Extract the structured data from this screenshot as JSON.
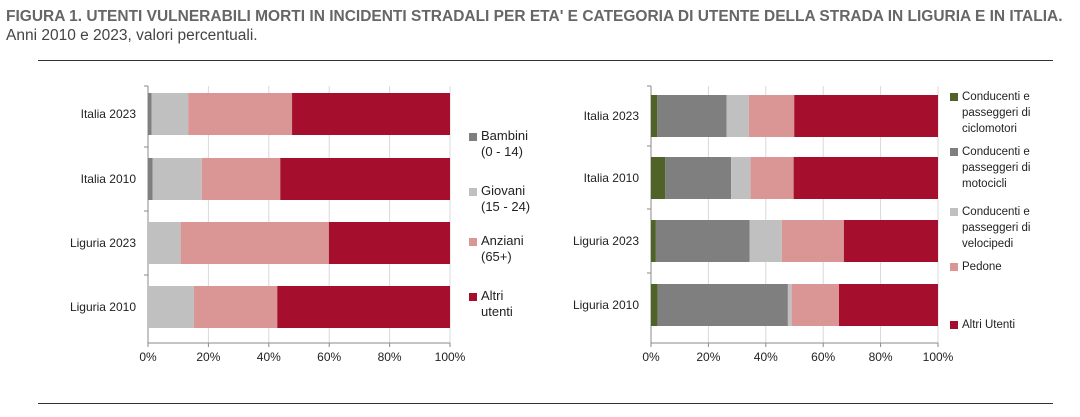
{
  "title": {
    "bold": "FIGURA 1. UTENTI VULNERABILI MORTI IN INCIDENTI STRADALI PER ETA' E CATEGORIA DI UTENTE DELLA STRADA IN LIGURIA E IN ITALIA.",
    "normal": " Anni 2010 e 2023, valori percentuali."
  },
  "chart_data": [
    {
      "type": "bar",
      "stacked": true,
      "orientation": "horizontal",
      "categories": [
        "Italia 2023",
        "Italia 2010",
        "Liguria 2023",
        "Liguria 2010"
      ],
      "series": [
        {
          "name": "Bambini (0 - 14)",
          "legend_lines": [
            "Bambini",
            "(0 - 14)"
          ],
          "color": "#7f7f7f",
          "values": [
            1.2,
            1.5,
            0,
            0
          ]
        },
        {
          "name": "Giovani (15 - 24)",
          "legend_lines": [
            "Giovani",
            "(15 - 24)"
          ],
          "color": "#c0c0c0",
          "values": [
            12.1,
            16.3,
            10.8,
            15.2
          ]
        },
        {
          "name": "Anziani (65+)",
          "legend_lines": [
            "Anziani",
            "(65+)"
          ],
          "color": "#da9694",
          "values": [
            34.4,
            26.0,
            49.1,
            27.6
          ]
        },
        {
          "name": "Altri utenti",
          "legend_lines": [
            "Altri",
            "utenti"
          ],
          "color": "#a50f2d",
          "values": [
            52.3,
            56.2,
            40.1,
            57.2
          ]
        }
      ],
      "xticks": [
        "0%",
        "20%",
        "40%",
        "60%",
        "80%",
        "100%"
      ],
      "xlim": [
        0,
        100
      ],
      "legend": "right"
    },
    {
      "type": "bar",
      "stacked": true,
      "orientation": "horizontal",
      "categories": [
        "Italia 2023",
        "Italia 2010",
        "Liguria 2023",
        "Liguria 2010"
      ],
      "series": [
        {
          "name": "Conducenti e passeggeri di ciclomotori",
          "legend_lines": [
            "Conducenti e",
            "passeggeri di",
            "ciclomotori"
          ],
          "color": "#4f6228",
          "values": [
            2.2,
            4.9,
            1.7,
            2.3
          ]
        },
        {
          "name": "Conducenti e passeggeri di motocicli",
          "legend_lines": [
            "Conducenti e",
            "passeggeri di",
            "motocicli"
          ],
          "color": "#7f7f7f",
          "values": [
            24.1,
            23.0,
            32.7,
            45.4
          ]
        },
        {
          "name": "Conducenti e passeggeri di velocipedi",
          "legend_lines": [
            "Conducenti e",
            "passeggeri di",
            "velocipedi"
          ],
          "color": "#c0c0c0",
          "values": [
            7.8,
            6.8,
            11.2,
            1.3
          ]
        },
        {
          "name": "Pedone",
          "legend_lines": [
            "Pedone"
          ],
          "color": "#da9694",
          "values": [
            15.8,
            15.0,
            21.6,
            16.5
          ]
        },
        {
          "name": "Altri Utenti",
          "legend_lines": [
            "Altri Utenti"
          ],
          "color": "#a50f2d",
          "values": [
            50.1,
            50.3,
            32.8,
            34.5
          ]
        }
      ],
      "xticks": [
        "0%",
        "20%",
        "40%",
        "60%",
        "80%",
        "100%"
      ],
      "xlim": [
        0,
        100
      ],
      "legend": "right"
    }
  ]
}
